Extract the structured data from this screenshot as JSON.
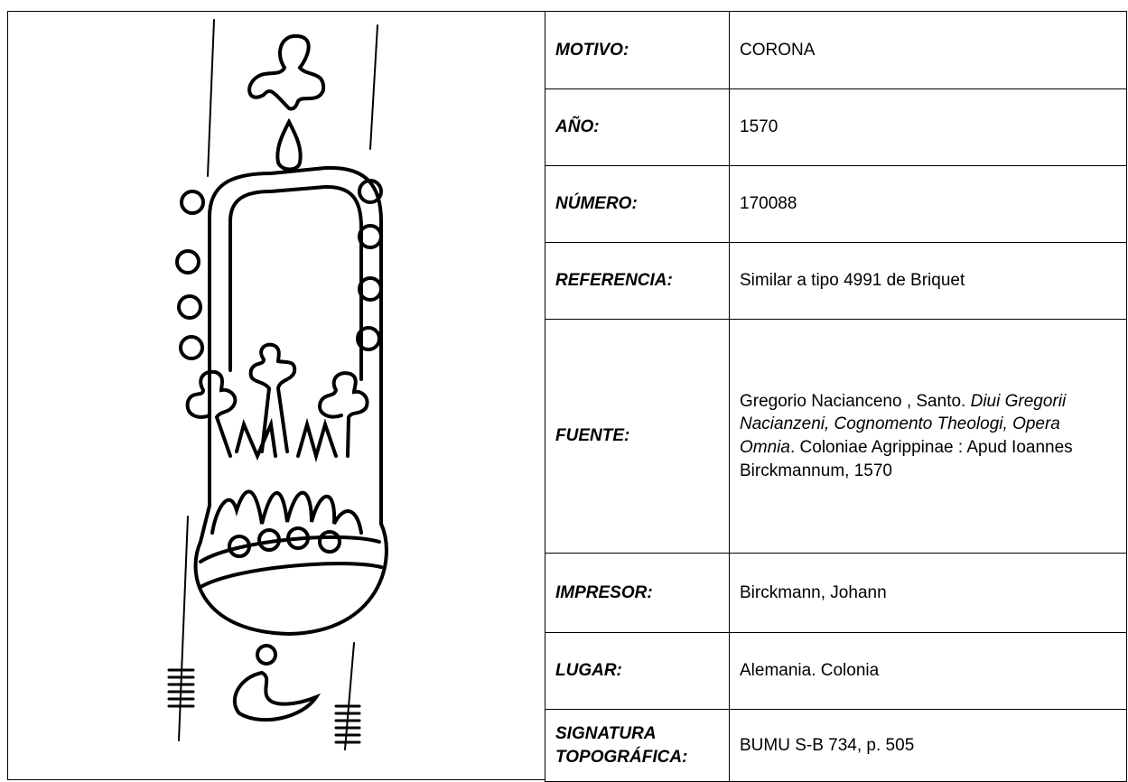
{
  "rows": [
    {
      "label": "MOTIVO:",
      "value": [
        "CORONA"
      ]
    },
    {
      "label": "AÑO:",
      "value": [
        "1570"
      ]
    },
    {
      "label": "NÚMERO:",
      "value": [
        "170088"
      ]
    },
    {
      "label": "REFERENCIA:",
      "value": [
        "Similar a tipo 4991 de Briquet"
      ]
    },
    {
      "label": "FUENTE:",
      "value": [
        "Gregorio Nacianceno , Santo. ",
        "Diui Gregorii Nacianzeni, Cognomento Theologi, Opera Omnia",
        ". Coloniae Agrippinae : Apud Ioannes Birckmannum, 1570"
      ],
      "italic": [
        false,
        true,
        false
      ]
    },
    {
      "label": "IMPRESOR:",
      "value": [
        "Birckmann, Johann"
      ]
    },
    {
      "label": "LUGAR:",
      "value": [
        "Alemania. Colonia"
      ]
    },
    {
      "label": "SIGNATURA TOPOGRÁFICA:",
      "value": [
        "BUMU S-B 734, p. 505"
      ]
    }
  ]
}
